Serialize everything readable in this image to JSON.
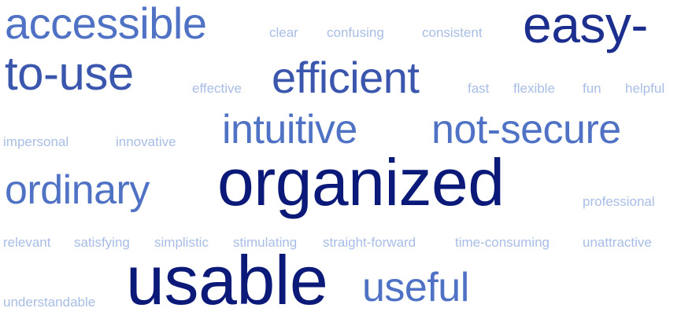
{
  "colors": {
    "level_1": "#a8bde6",
    "level_2": "#4f72c4",
    "level_3": "#3b56ad",
    "level_4": "#1c2f8e",
    "level_5": "#0b1a78"
  },
  "words": {
    "accessible": "accessible",
    "clear": "clear",
    "confusing": "confusing",
    "consistent": "consistent",
    "easy_line1": "easy-",
    "easy_line2": "to-use",
    "effective": "effective",
    "efficient": "efficient",
    "fast": "fast",
    "flexible": "flexible",
    "fun": "fun",
    "helpful": "helpful",
    "impersonal": "impersonal",
    "innovative": "innovative",
    "intuitive": "intuitive",
    "not_secure": "not-secure",
    "ordinary": "ordinary",
    "organized": "organized",
    "professional": "professional",
    "relevant": "relevant",
    "satisfying": "satisfying",
    "simplistic": "simplistic",
    "stimulating": "stimulating",
    "straight_forward": "straight-forward",
    "time_consuming": "time-consuming",
    "unattractive": "unattractive",
    "understandable": "understandable",
    "usable": "usable",
    "useful": "useful"
  }
}
